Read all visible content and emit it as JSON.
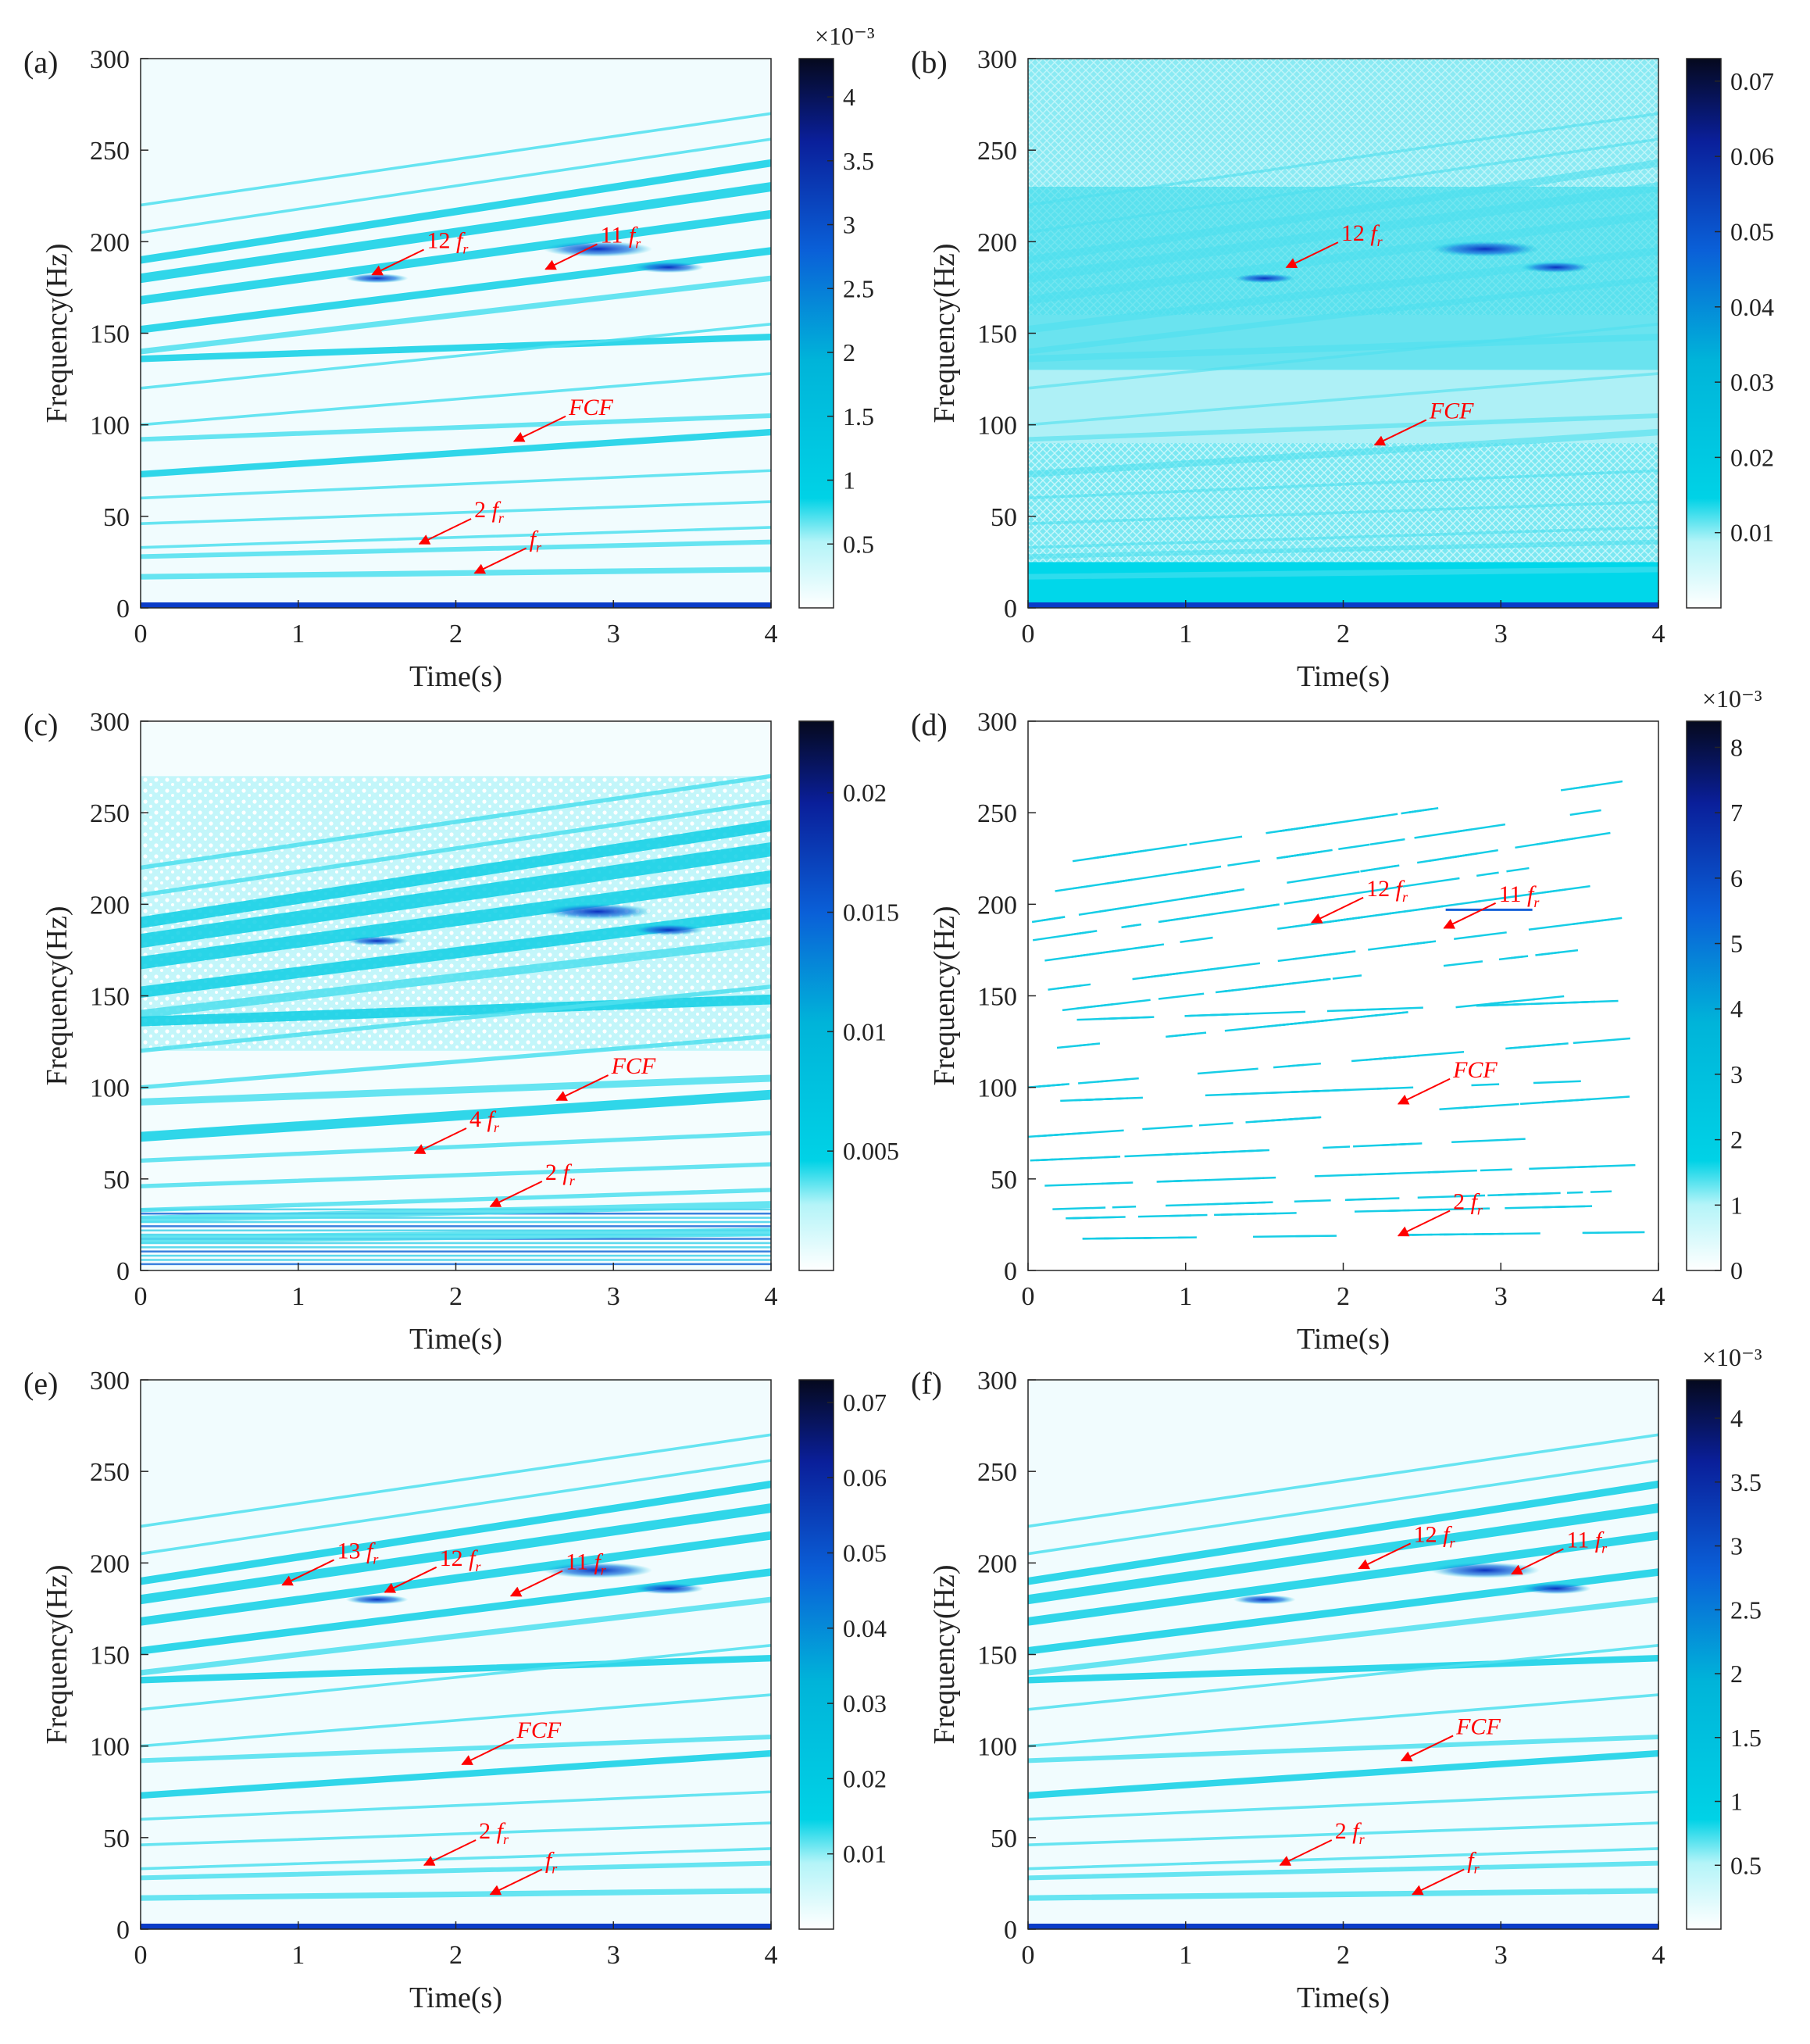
{
  "figure": {
    "common": {
      "xlabel": "Time(s)",
      "ylabel": "Frequency(Hz)",
      "xlim": [
        0,
        4
      ],
      "ylim": [
        0,
        300
      ],
      "xticks": [
        "0",
        "1",
        "2",
        "3",
        "4"
      ],
      "yticks": [
        "0",
        "50",
        "100",
        "150",
        "200",
        "250",
        "300"
      ]
    }
  },
  "chart_data": [
    {
      "type": "heatmap",
      "panel": "(a)",
      "xlabel": "Time(s)",
      "ylabel": "Frequency(Hz)",
      "xlim": [
        0,
        4
      ],
      "ylim": [
        0,
        300
      ],
      "colorbar": {
        "exponent": "×10⁻³",
        "ticks": [
          "0.5",
          "1",
          "1.5",
          "2",
          "2.5",
          "3",
          "3.5",
          "4"
        ],
        "values": [
          0.5,
          1,
          1.5,
          2,
          2.5,
          3,
          3.5,
          4
        ],
        "range": [
          0,
          4.3
        ]
      },
      "annotations": [
        {
          "label": "12 fr",
          "text": "12",
          "sub": "r",
          "point": [
            1.45,
            182
          ]
        },
        {
          "label": "11 fr",
          "text": "11",
          "sub": "r",
          "point": [
            2.55,
            185
          ]
        },
        {
          "label": "FCF",
          "text": "FCF",
          "sub": "",
          "point": [
            2.35,
            91
          ]
        },
        {
          "label": "2 fr",
          "text": "2",
          "sub": "r",
          "point": [
            1.75,
            35
          ]
        },
        {
          "label": "fr",
          "text": "",
          "sub": "r",
          "point": [
            2.1,
            19
          ]
        }
      ]
    },
    {
      "type": "heatmap",
      "panel": "(b)",
      "xlabel": "Time(s)",
      "ylabel": "Frequency(Hz)",
      "xlim": [
        0,
        4
      ],
      "ylim": [
        0,
        300
      ],
      "colorbar": {
        "exponent": "",
        "ticks": [
          "0.01",
          "0.02",
          "0.03",
          "0.04",
          "0.05",
          "0.06",
          "0.07"
        ],
        "values": [
          0.01,
          0.02,
          0.03,
          0.04,
          0.05,
          0.06,
          0.07
        ],
        "range": [
          0,
          0.073
        ]
      },
      "annotations": [
        {
          "label": "12 fr",
          "text": "12",
          "sub": "r",
          "point": [
            1.62,
            186
          ]
        },
        {
          "label": "FCF",
          "text": "FCF",
          "sub": "",
          "point": [
            2.18,
            89
          ]
        }
      ]
    },
    {
      "type": "heatmap",
      "panel": "(c)",
      "xlabel": "Time(s)",
      "ylabel": "Frequency(Hz)",
      "xlim": [
        0,
        4
      ],
      "ylim": [
        0,
        300
      ],
      "colorbar": {
        "exponent": "",
        "ticks": [
          "0.005",
          "0.01",
          "0.015",
          "0.02"
        ],
        "values": [
          0.005,
          0.01,
          0.015,
          0.02
        ],
        "range": [
          0,
          0.023
        ]
      },
      "annotations": [
        {
          "label": "FCF",
          "text": "FCF",
          "sub": "",
          "point": [
            2.62,
            93
          ]
        },
        {
          "label": "4 fr",
          "text": "4",
          "sub": "r",
          "point": [
            1.72,
            64
          ]
        },
        {
          "label": "2 fr",
          "text": "2",
          "sub": "r",
          "point": [
            2.2,
            35
          ]
        }
      ]
    },
    {
      "type": "heatmap",
      "panel": "(d)",
      "xlabel": "Time(s)",
      "ylabel": "Frequency(Hz)",
      "xlim": [
        0,
        4
      ],
      "ylim": [
        0,
        300
      ],
      "colorbar": {
        "exponent": "×10⁻³",
        "ticks": [
          "0",
          "1",
          "2",
          "3",
          "4",
          "5",
          "6",
          "7",
          "8"
        ],
        "values": [
          0,
          1,
          2,
          3,
          4,
          5,
          6,
          7,
          8
        ],
        "range": [
          0,
          8.4
        ]
      },
      "annotations": [
        {
          "label": "12 fr",
          "text": "12",
          "sub": "r",
          "point": [
            1.78,
            190
          ]
        },
        {
          "label": "11 fr",
          "text": "11",
          "sub": "r",
          "point": [
            2.62,
            187
          ]
        },
        {
          "label": "FCF",
          "text": "FCF",
          "sub": "",
          "point": [
            2.33,
            91
          ]
        },
        {
          "label": "2 fr",
          "text": "2",
          "sub": "r",
          "point": [
            2.33,
            19
          ]
        }
      ]
    },
    {
      "type": "heatmap",
      "panel": "(e)",
      "xlabel": "Time(s)",
      "ylabel": "Frequency(Hz)",
      "xlim": [
        0,
        4
      ],
      "ylim": [
        0,
        300
      ],
      "colorbar": {
        "exponent": "",
        "ticks": [
          "0.01",
          "0.02",
          "0.03",
          "0.04",
          "0.05",
          "0.06",
          "0.07"
        ],
        "values": [
          0.01,
          0.02,
          0.03,
          0.04,
          0.05,
          0.06,
          0.07
        ],
        "range": [
          0,
          0.073
        ]
      },
      "annotations": [
        {
          "label": "13 fr",
          "text": "13",
          "sub": "r",
          "point": [
            0.88,
            188
          ]
        },
        {
          "label": "12 fr",
          "text": "12",
          "sub": "r",
          "point": [
            1.53,
            184
          ]
        },
        {
          "label": "11 fr",
          "text": "11",
          "sub": "r",
          "point": [
            2.33,
            182
          ]
        },
        {
          "label": "FCF",
          "text": "FCF",
          "sub": "",
          "point": [
            2.02,
            90
          ]
        },
        {
          "label": "2 fr",
          "text": "2",
          "sub": "r",
          "point": [
            1.78,
            35
          ]
        },
        {
          "label": "fr",
          "text": "",
          "sub": "r",
          "point": [
            2.2,
            19
          ]
        }
      ]
    },
    {
      "type": "heatmap",
      "panel": "(f)",
      "xlabel": "Time(s)",
      "ylabel": "Frequency(Hz)",
      "xlim": [
        0,
        4
      ],
      "ylim": [
        0,
        300
      ],
      "colorbar": {
        "exponent": "×10⁻³",
        "ticks": [
          "0.5",
          "1",
          "1.5",
          "2",
          "2.5",
          "3",
          "3.5",
          "4"
        ],
        "values": [
          0.5,
          1,
          1.5,
          2,
          2.5,
          3,
          3.5,
          4
        ],
        "range": [
          0,
          4.3
        ]
      },
      "annotations": [
        {
          "label": "12 fr",
          "text": "12",
          "sub": "r",
          "point": [
            2.08,
            197
          ]
        },
        {
          "label": "11 fr",
          "text": "11",
          "sub": "r",
          "point": [
            3.05,
            194
          ]
        },
        {
          "label": "FCF",
          "text": "FCF",
          "sub": "",
          "point": [
            2.35,
            92
          ]
        },
        {
          "label": "2 fr",
          "text": "2",
          "sub": "r",
          "point": [
            1.58,
            35
          ]
        },
        {
          "label": "fr",
          "text": "",
          "sub": "r",
          "point": [
            2.42,
            19
          ]
        }
      ]
    }
  ]
}
